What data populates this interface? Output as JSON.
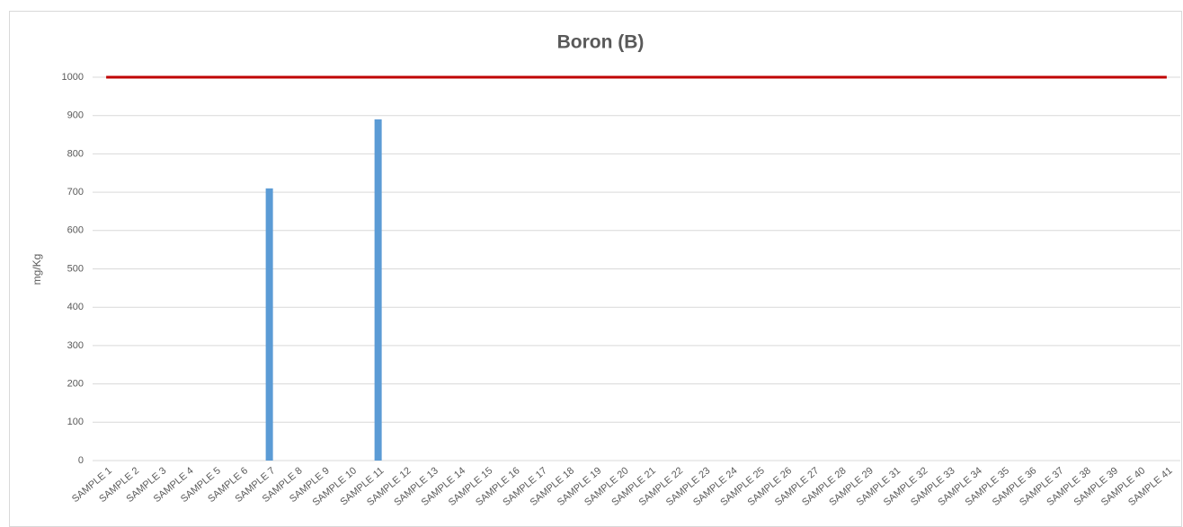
{
  "chart_data": {
    "type": "bar",
    "title": "Boron (B)",
    "y_label": "mg/Kg",
    "categories": [
      "SAMPLE 1",
      "SAMPLE 2",
      "SAMPLE 3",
      "SAMPLE 4",
      "SAMPLE 5",
      "SAMPLE 6",
      "SAMPLE 7",
      "SAMPLE 8",
      "SAMPLE 9",
      "SAMPLE 10",
      "SAMPLE 11",
      "SAMPLE 12",
      "SAMPLE 13",
      "SAMPLE 14",
      "SAMPLE 15",
      "SAMPLE 16",
      "SAMPLE 17",
      "SAMPLE 18",
      "SAMPLE 19",
      "SAMPLE 20",
      "SAMPLE 21",
      "SAMPLE 22",
      "SAMPLE 23",
      "SAMPLE 24",
      "SAMPLE 25",
      "SAMPLE 26",
      "SAMPLE 27",
      "SAMPLE 28",
      "SAMPLE 29",
      "SAMPLE 31",
      "SAMPLE 32",
      "SAMPLE 33",
      "SAMPLE 34",
      "SAMPLE 35",
      "SAMPLE 36",
      "SAMPLE 37",
      "SAMPLE 38",
      "SAMPLE 39",
      "SAMPLE 40",
      "SAMPLE 41"
    ],
    "series": [
      {
        "type": "bar",
        "color": "#5b9bd5",
        "values": [
          0,
          0,
          0,
          0,
          0,
          0,
          710,
          0,
          0,
          0,
          890,
          0,
          0,
          0,
          0,
          0,
          0,
          0,
          0,
          0,
          0,
          0,
          0,
          0,
          0,
          0,
          0,
          0,
          0,
          0,
          0,
          0,
          0,
          0,
          0,
          0,
          0,
          0,
          0,
          0
        ]
      },
      {
        "type": "line",
        "color": "#c00000",
        "values": [
          1000,
          1000,
          1000,
          1000,
          1000,
          1000,
          1000,
          1000,
          1000,
          1000,
          1000,
          1000,
          1000,
          1000,
          1000,
          1000,
          1000,
          1000,
          1000,
          1000,
          1000,
          1000,
          1000,
          1000,
          1000,
          1000,
          1000,
          1000,
          1000,
          1000,
          1000,
          1000,
          1000,
          1000,
          1000,
          1000,
          1000,
          1000,
          1000,
          1000
        ]
      }
    ],
    "ylim": [
      0,
      1000
    ],
    "yticks": [
      0,
      100,
      200,
      300,
      400,
      500,
      600,
      700,
      800,
      900,
      1000
    ],
    "grid": true
  }
}
